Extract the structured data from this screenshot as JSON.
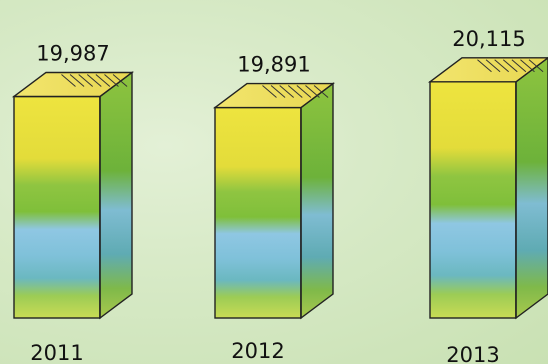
{
  "chart_data": {
    "type": "bar",
    "categories": [
      "2011",
      "2012",
      "2013"
    ],
    "values": [
      19987,
      19891,
      20115
    ],
    "value_labels": [
      "19,987",
      "19,891",
      "20,115"
    ],
    "style": "3d-box-bars",
    "axes_visible": false,
    "gridlines": false,
    "legend": "none",
    "colors": {
      "yellow": "#e6e23a",
      "green": "#7fbf3a",
      "blue": "#8fc7e3",
      "teal": "#5fb4b6",
      "top_face": "#f0e36a",
      "outline": "#222222"
    }
  }
}
